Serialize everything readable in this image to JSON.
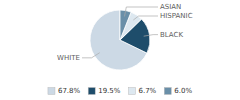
{
  "chart_data": {
    "type": "pie",
    "categories": [
      "WHITE",
      "BLACK",
      "HISPANIC",
      "ASIAN"
    ],
    "values": [
      67.8,
      19.5,
      6.7,
      6.0
    ],
    "value_labels": [
      "67.8%",
      "19.5%",
      "6.7%",
      "6.0%"
    ],
    "colors": [
      "#ccd9e5",
      "#1e4d6b",
      "#dde8f0",
      "#6a8fa8"
    ],
    "legend": "bottom"
  }
}
